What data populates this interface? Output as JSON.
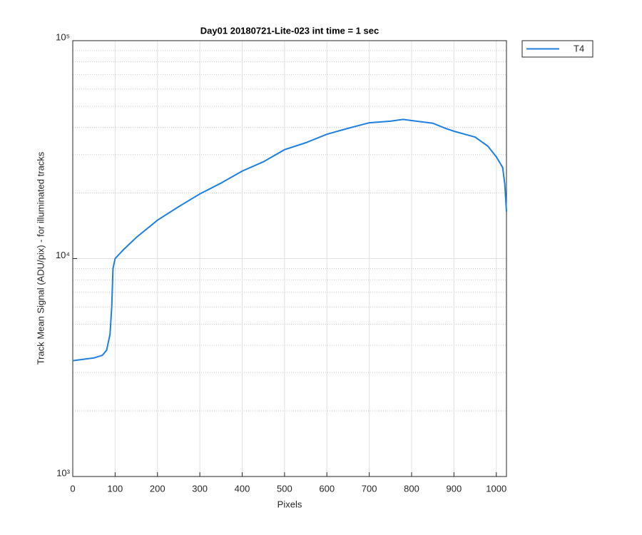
{
  "chart_data": {
    "type": "line",
    "title": "Day01 20180721-Lite-023 int time = 1 sec",
    "x_label": "Pixels",
    "y_label": "Track Mean Signal (ADU/pix) - for illuminated tracks",
    "log_y": true,
    "grid": true,
    "legend_position": "outside-top-right",
    "xlim": [
      0,
      1024
    ],
    "xticks": [
      0,
      100,
      200,
      300,
      400,
      500,
      600,
      700,
      800,
      900,
      1000
    ],
    "ylim": [
      1000,
      100000
    ],
    "yticks": [
      {
        "value": 1000,
        "label": "10³"
      },
      {
        "value": 10000,
        "label": "10⁴"
      },
      {
        "value": 100000,
        "label": "10⁵"
      }
    ],
    "yminorticks": [
      2000,
      3000,
      4000,
      5000,
      6000,
      7000,
      8000,
      9000,
      20000,
      30000,
      40000,
      50000,
      60000,
      70000,
      80000,
      90000
    ],
    "x": [
      0,
      50,
      70,
      80,
      88,
      92,
      95,
      100,
      120,
      150,
      200,
      250,
      300,
      350,
      400,
      450,
      500,
      550,
      600,
      650,
      700,
      750,
      780,
      800,
      850,
      880,
      900,
      950,
      980,
      1000,
      1015,
      1020,
      1024
    ],
    "series": [
      {
        "name": "T4",
        "color": "#1f7fe0",
        "values": [
          3400,
          3500,
          3600,
          3800,
          4500,
          6000,
          9000,
          10000,
          11000,
          12500,
          15000,
          17300,
          19800,
          22200,
          25200,
          27800,
          31600,
          34000,
          37200,
          39600,
          42000,
          42700,
          43500,
          43000,
          41800,
          39600,
          38400,
          36100,
          32800,
          29300,
          26200,
          22000,
          16400
        ]
      }
    ]
  }
}
